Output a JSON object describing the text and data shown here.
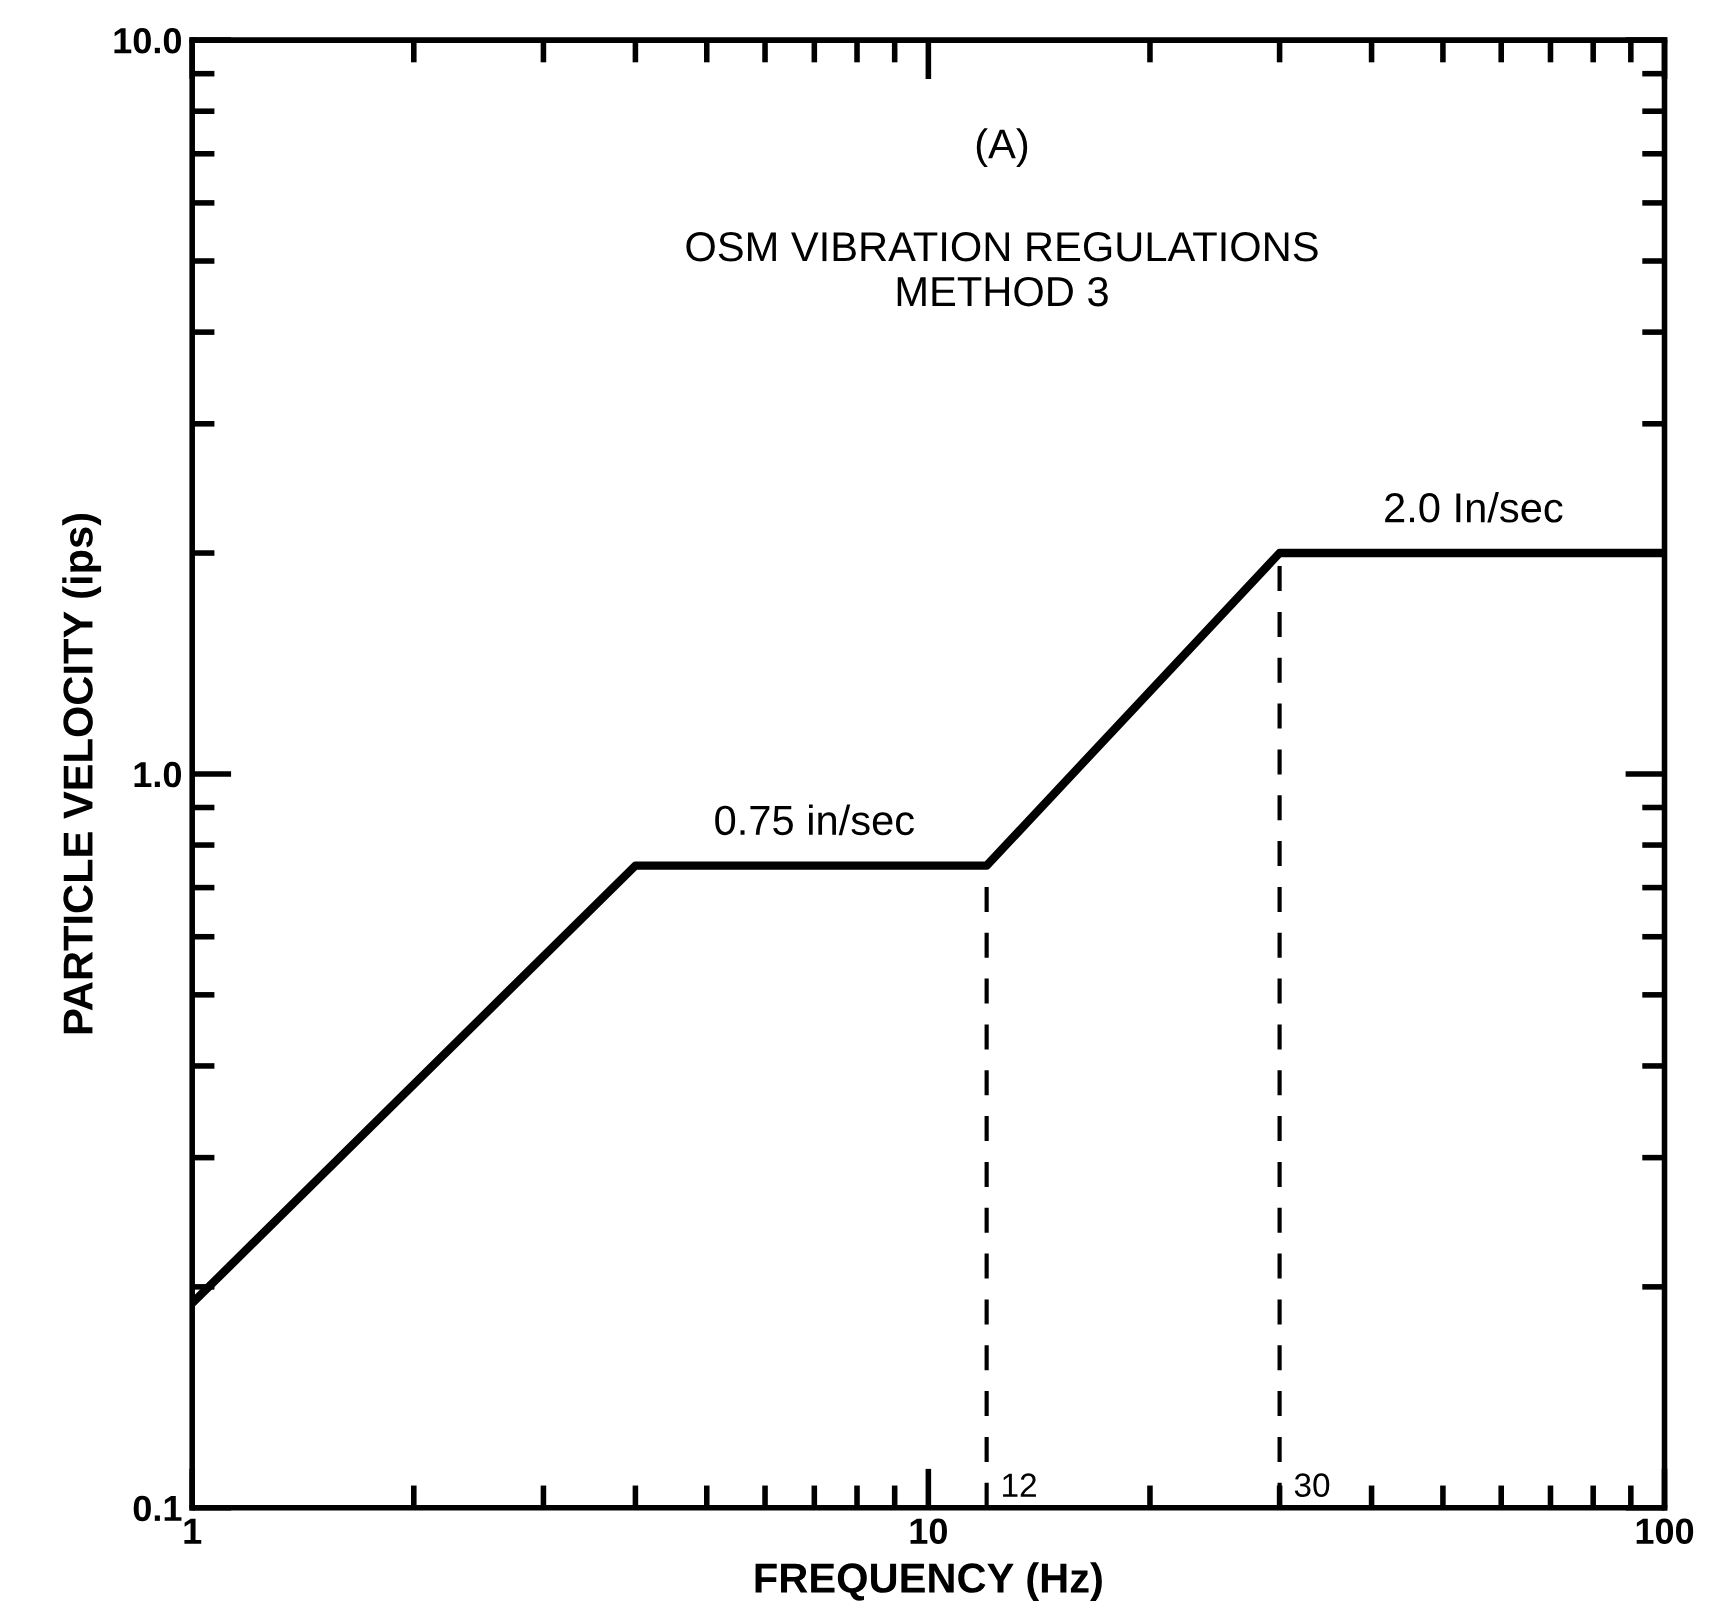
{
  "chart_data": {
    "type": "line",
    "xlabel": "FREQUENCY (Hz)",
    "ylabel": "PARTICLE VELOCITY (ips)",
    "annotations": [
      "(A)",
      "OSM VIBRATION REGULATIONS\nMETHOD 3",
      {
        "text": "0.75 in/sec",
        "x": 7,
        "y": 0.75
      },
      {
        "text": "2.0 In/sec",
        "x": 55,
        "y": 2.0
      }
    ],
    "x": [
      1,
      4,
      12,
      30,
      100
    ],
    "series": [
      {
        "color": "#000000",
        "values": [
          0.19,
          0.75,
          0.75,
          2.0,
          2.0
        ]
      }
    ],
    "ref_lines": [
      {
        "axis": "x",
        "value": 12,
        "label": "12",
        "color": "#000000",
        "line_style": "dashed"
      },
      {
        "axis": "x",
        "value": 30,
        "label": "30",
        "color": "#000000",
        "line_style": "dashed"
      }
    ],
    "log": "xy",
    "xlim": [
      1,
      100
    ],
    "ylim": [
      0.1,
      10
    ],
    "xticks": [
      1,
      10,
      100
    ],
    "yticks": [
      {
        "value": 0.1,
        "label": "0.1"
      },
      {
        "value": 1,
        "label": "1.0"
      },
      {
        "value": 10,
        "label": "10.0"
      }
    ],
    "grid": false,
    "legend": false,
    "marker": "none",
    "line_style": "solid"
  }
}
